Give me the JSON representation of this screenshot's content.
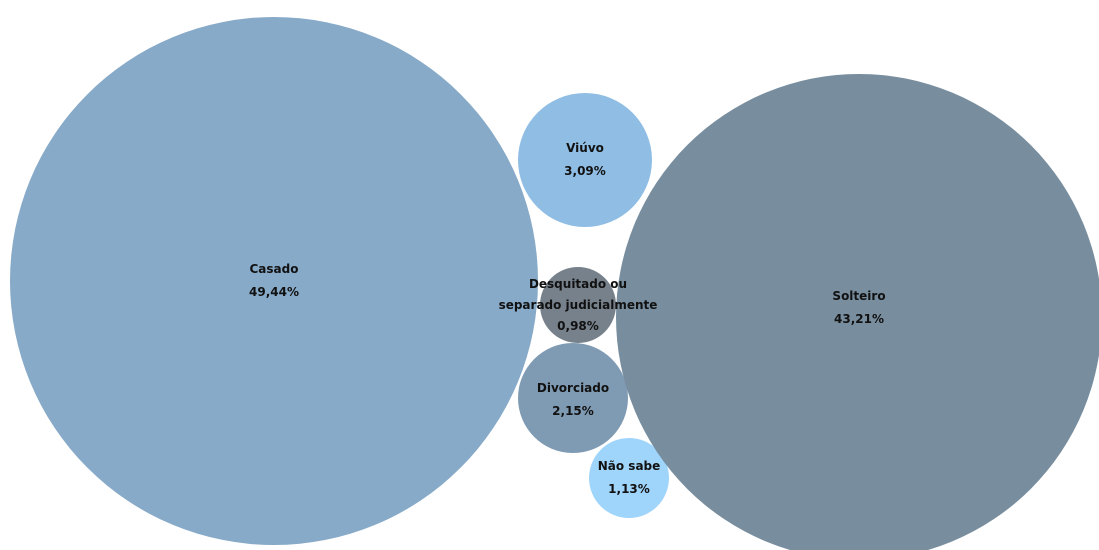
{
  "chart_data": {
    "type": "bubble",
    "title": "",
    "series": [
      {
        "name": "Casado",
        "value": 49.44,
        "value_label": "49,44%",
        "color": "#87aac8"
      },
      {
        "name": "Solteiro",
        "value": 43.21,
        "value_label": "43,21%",
        "color": "#788e9f"
      },
      {
        "name": "Viúvo",
        "value": 3.09,
        "value_label": "3,09%",
        "color": "#8fbde4"
      },
      {
        "name": "Desquitado ou separado judicialmente",
        "value": 0.98,
        "value_label": "0,98%",
        "color": "#76818b",
        "label_lines": [
          "Desquitado ou",
          "separado judicialmente"
        ]
      },
      {
        "name": "Divorciado",
        "value": 2.15,
        "value_label": "2,15%",
        "color": "#7f9bb3"
      },
      {
        "name": "Não sabe",
        "value": 1.13,
        "value_label": "1,13%",
        "color": "#9fd4fb"
      }
    ]
  }
}
